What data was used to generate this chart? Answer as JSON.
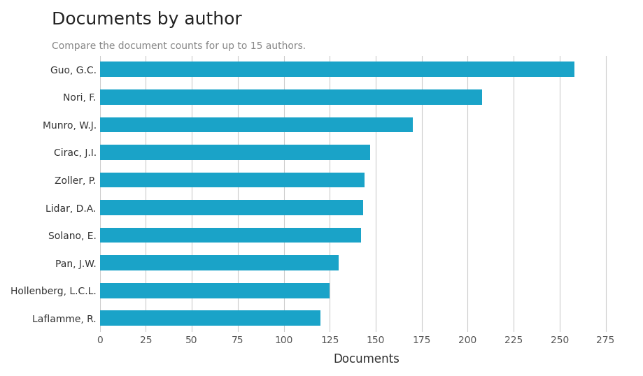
{
  "title": "Documents by author",
  "subtitle": "Compare the document counts for up to 15 authors.",
  "xlabel": "Documents",
  "authors": [
    "Guo, G.C.",
    "Nori, F.",
    "Munro, W.J.",
    "Cirac, J.I.",
    "Zoller, P.",
    "Lidar, D.A.",
    "Solano, E.",
    "Pan, J.W.",
    "Hollenberg, L.C.L.",
    "Laflamme, R."
  ],
  "values": [
    258,
    208,
    170,
    147,
    144,
    143,
    142,
    130,
    125,
    120
  ],
  "bar_color": "#1aa3c8",
  "background_color": "#ffffff",
  "xlim": [
    0,
    290
  ],
  "xticks": [
    0,
    25,
    50,
    75,
    100,
    125,
    150,
    175,
    200,
    225,
    250,
    275
  ],
  "title_fontsize": 18,
  "subtitle_fontsize": 10,
  "xlabel_fontsize": 12,
  "tick_fontsize": 10,
  "bar_height": 0.55
}
